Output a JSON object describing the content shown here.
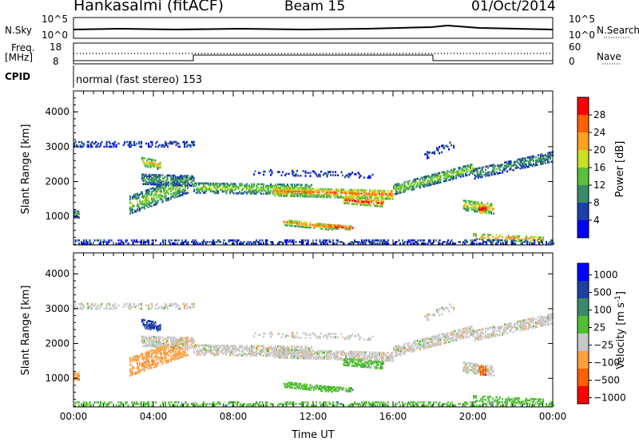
{
  "header": {
    "station": "Hankasalmi (fitACF)",
    "beam": "Beam 15",
    "date": "01/Oct/2014"
  },
  "top_panels": {
    "nsky_label": "N.Sky",
    "nsky_ticks": [
      "10^5",
      "10^0"
    ],
    "nsearch_label": "N.Search",
    "nsearch_ticks": [
      "10^5",
      "10^0"
    ],
    "freq_label_1": "Freq.",
    "freq_label_2": "[MHz]",
    "freq_ticks": [
      "18",
      "8"
    ],
    "nave_label": "Nave",
    "nave_ticks": [
      "60",
      "0"
    ],
    "cpid_label": "CPID",
    "cpid_text": "normal (fast stereo) 153"
  },
  "colors": {
    "scale": [
      "#0000ff",
      "#2040a0",
      "#3a8a6a",
      "#50c030",
      "#c8c8c8",
      "#ffa040",
      "#ff6000",
      "#ff0000"
    ],
    "power": [
      "#0000ff",
      "#1c3fa8",
      "#3a8a6a",
      "#58c03c",
      "#c8e020",
      "#ffa020",
      "#ff6000",
      "#ff0000"
    ]
  },
  "chart_data": [
    {
      "type": "heatmap",
      "name_on_chart": "Power [dB]",
      "xlabel": "",
      "ylabel": "Slant Range [km]",
      "xlim": [
        0,
        24
      ],
      "ylim": [
        180,
        4600
      ],
      "y_ticks": [
        "1000",
        "2000",
        "3000",
        "4000"
      ],
      "colorbar_title": "Power [dB]",
      "colorbar_ticks": [
        "4",
        "8",
        "12",
        "16",
        "20",
        "24",
        "28"
      ]
    },
    {
      "type": "heatmap",
      "xlabel": "Time UT",
      "ylabel": "Slant Range [km]",
      "xlim": [
        0,
        24
      ],
      "ylim": [
        180,
        4600
      ],
      "x_ticks": [
        "00:00",
        "04:00",
        "08:00",
        "12:00",
        "16:00",
        "20:00",
        "00:00"
      ],
      "y_ticks": [
        "1000",
        "2000",
        "3000",
        "4000"
      ],
      "colorbar_title": "Velocity [m s",
      "colorbar_title_sup": "-1",
      "colorbar_title_end": "]",
      "colorbar_ticks": [
        "1000",
        "500",
        "100",
        "25",
        "−25",
        "−100",
        "−500",
        "−1000"
      ]
    }
  ]
}
